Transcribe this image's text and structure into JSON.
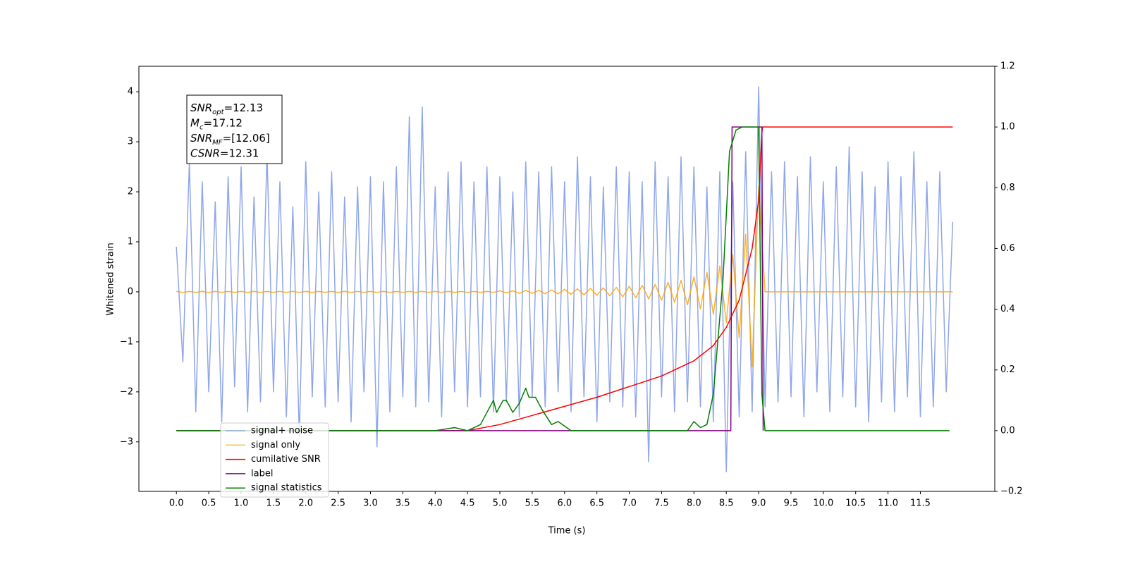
{
  "chart_data": {
    "type": "line",
    "xlabel": "Time (s)",
    "ylabel": "Whitened strain",
    "xlim": [
      -0.58,
      12.65
    ],
    "ylim": [
      -3.99,
      4.51
    ],
    "y2lim": [
      -0.2,
      1.2
    ],
    "xticks": [
      {
        "value": 0,
        "label": "0.0"
      },
      0.5,
      {
        "value": 1,
        "label": "1.0"
      },
      1.5,
      {
        "value": 2,
        "label": "2.0"
      },
      2.5,
      {
        "value": 3,
        "label": "3.0"
      },
      3.5,
      {
        "value": 4,
        "label": "4.0"
      },
      4.5,
      {
        "value": 5,
        "label": "5.0"
      },
      5.5,
      {
        "value": 6,
        "label": "6.0"
      },
      6.5,
      {
        "value": 7,
        "label": "7.0"
      },
      7.5,
      {
        "value": 8,
        "label": "8.0"
      },
      8.5,
      {
        "value": 9,
        "label": "9.0"
      },
      9.5,
      {
        "value": 10,
        "label": "10.0"
      },
      10.5,
      {
        "value": 11,
        "label": "11.0"
      },
      11.5
    ],
    "yticks": [
      {
        "value": -3,
        "label": "−3"
      },
      {
        "value": -2,
        "label": "−2"
      },
      {
        "value": -1,
        "label": "−1"
      },
      0,
      1,
      2,
      3,
      4
    ],
    "y2ticks": [
      {
        "value": -0.2,
        "label": "−0.2"
      },
      {
        "value": 0,
        "label": "0.0"
      },
      0.2,
      0.4,
      0.6,
      0.8,
      {
        "value": 1,
        "label": "1.0"
      },
      1.2
    ],
    "legend": "lower left",
    "annotations": [
      {
        "main": "SNR",
        "sub": "opt",
        "rest": "=12.13"
      },
      {
        "main": "M",
        "sub": "c",
        "rest": "=17.12"
      },
      {
        "main": "SNR",
        "sub": "MF",
        "rest": "=[12.06]"
      },
      {
        "main": "CSNR",
        "sub": "",
        "rest": "=12.31"
      }
    ],
    "x": [
      0.0,
      0.1,
      0.2,
      0.3,
      0.4,
      0.5,
      0.6,
      0.7,
      0.8,
      0.9,
      1.0,
      1.1,
      1.2,
      1.3,
      1.4,
      1.5,
      1.6,
      1.7,
      1.8,
      1.9,
      2.0,
      2.1,
      2.2,
      2.3,
      2.4,
      2.5,
      2.6,
      2.7,
      2.8,
      2.9,
      3.0,
      3.1,
      3.2,
      3.3,
      3.4,
      3.5,
      3.6,
      3.7,
      3.8,
      3.9,
      4.0,
      4.1,
      4.2,
      4.3,
      4.4,
      4.5,
      4.6,
      4.7,
      4.8,
      4.9,
      5.0,
      5.1,
      5.2,
      5.3,
      5.4,
      5.5,
      5.6,
      5.7,
      5.8,
      5.9,
      6.0,
      6.1,
      6.2,
      6.3,
      6.4,
      6.5,
      6.6,
      6.7,
      6.8,
      6.9,
      7.0,
      7.1,
      7.2,
      7.3,
      7.4,
      7.5,
      7.6,
      7.7,
      7.8,
      7.9,
      8.0,
      8.1,
      8.2,
      8.3,
      8.4,
      8.5,
      8.6,
      8.7,
      8.8,
      8.9,
      9.0,
      9.1,
      9.2,
      9.3,
      9.4,
      9.5,
      9.6,
      9.7,
      9.8,
      9.9,
      10.0,
      10.1,
      10.2,
      10.3,
      10.4,
      10.5,
      10.6,
      10.7,
      10.8,
      10.9,
      11.0,
      11.1,
      11.2,
      11.3,
      11.4,
      11.5,
      11.6,
      11.7,
      11.8,
      11.9,
      12.0
    ],
    "series": [
      {
        "name": "signal+ noise",
        "color": "#7b96e6",
        "values": [
          0.9,
          -1.4,
          2.6,
          -2.4,
          2.2,
          -2.0,
          1.8,
          -2.6,
          2.3,
          -1.9,
          2.5,
          -2.4,
          1.9,
          -2.2,
          2.8,
          -2.0,
          2.2,
          -2.5,
          1.7,
          -2.9,
          2.6,
          -2.1,
          2.0,
          -2.3,
          2.4,
          -2.2,
          1.9,
          -2.6,
          2.1,
          -2.0,
          2.3,
          -3.1,
          2.2,
          -2.4,
          2.5,
          -2.1,
          3.5,
          -2.3,
          3.7,
          -2.2,
          2.1,
          -2.5,
          2.4,
          -2.0,
          2.6,
          -2.3,
          2.2,
          -2.1,
          2.5,
          -2.4,
          2.3,
          -2.2,
          2.0,
          -2.5,
          2.6,
          -2.1,
          2.4,
          -2.3,
          2.5,
          -2.0,
          2.2,
          -2.4,
          2.7,
          -2.1,
          2.3,
          -2.6,
          2.1,
          -2.2,
          2.5,
          -2.3,
          2.4,
          -2.5,
          2.2,
          -3.4,
          2.6,
          -2.1,
          2.3,
          -2.4,
          2.7,
          -2.2,
          2.5,
          -2.3,
          2.1,
          -2.6,
          2.4,
          -3.6,
          2.2,
          -2.5,
          2.8,
          -2.4,
          4.1,
          -2.3,
          2.4,
          -2.2,
          2.6,
          -2.1,
          2.3,
          -2.5,
          2.7,
          -2.0,
          2.2,
          -2.4,
          2.5,
          -2.1,
          2.9,
          -2.3,
          2.4,
          -2.6,
          2.1,
          -2.2,
          2.6,
          -2.4,
          2.3,
          -2.1,
          2.8,
          -2.5,
          2.2,
          -2.3,
          2.4,
          -2.0,
          1.4
        ]
      },
      {
        "name": "signal only",
        "color": "#ffa500",
        "values": [
          0.01,
          -0.01,
          0.01,
          -0.01,
          0.01,
          -0.01,
          0.01,
          -0.01,
          0.01,
          -0.01,
          0.01,
          -0.01,
          0.01,
          -0.01,
          0.01,
          -0.01,
          0.01,
          -0.01,
          0.01,
          -0.01,
          0.01,
          -0.01,
          0.01,
          -0.01,
          0.01,
          -0.01,
          0.01,
          -0.01,
          0.01,
          -0.01,
          0.01,
          -0.01,
          0.01,
          -0.01,
          0.01,
          -0.01,
          0.01,
          -0.01,
          0.01,
          -0.01,
          0.01,
          -0.01,
          0.01,
          -0.01,
          0.01,
          -0.01,
          0.01,
          -0.01,
          0.01,
          -0.01,
          0.02,
          -0.02,
          0.02,
          -0.03,
          0.03,
          -0.03,
          0.03,
          -0.04,
          0.04,
          -0.04,
          0.05,
          -0.05,
          0.06,
          -0.06,
          0.07,
          -0.07,
          0.08,
          -0.08,
          0.09,
          -0.1,
          0.11,
          -0.12,
          0.13,
          -0.14,
          0.15,
          -0.17,
          0.19,
          -0.21,
          0.23,
          -0.26,
          0.3,
          -0.34,
          0.39,
          -0.45,
          0.52,
          -0.62,
          0.75,
          -0.92,
          1.15,
          -1.5,
          2.1,
          0,
          0,
          0,
          0,
          0,
          0,
          0,
          0,
          0,
          0,
          0,
          0,
          0,
          0,
          0,
          0,
          0,
          0,
          0,
          0,
          0,
          0,
          0,
          0,
          0,
          0,
          0,
          0,
          0,
          0
        ]
      },
      {
        "name": "cumilative SNR",
        "color": "#ff0000",
        "axis": "y2",
        "x": [
          0,
          4.5,
          5,
          5.5,
          6,
          6.5,
          7,
          7.5,
          8,
          8.3,
          8.5,
          8.7,
          8.9,
          9.0,
          9.05,
          9.06,
          12.0
        ],
        "values": [
          0,
          0,
          0.02,
          0.05,
          0.08,
          0.11,
          0.145,
          0.18,
          0.23,
          0.28,
          0.34,
          0.43,
          0.6,
          0.76,
          0.98,
          1.0,
          1.0
        ]
      },
      {
        "name": "label",
        "color": "#800080",
        "axis": "y2",
        "x": [
          0,
          8.57,
          8.59,
          9.05,
          9.07
        ],
        "values": [
          0,
          0,
          1,
          1,
          0
        ]
      },
      {
        "name": "signal statistics",
        "color": "#008000",
        "axis": "y2",
        "x": [
          0,
          4.0,
          4.3,
          4.5,
          4.7,
          4.9,
          4.95,
          5.05,
          5.1,
          5.2,
          5.3,
          5.4,
          5.45,
          5.55,
          5.65,
          5.8,
          5.9,
          6.1,
          7.9,
          8.0,
          8.1,
          8.2,
          8.3,
          8.45,
          8.55,
          8.65,
          8.75,
          8.95,
          9.0,
          9.05,
          9.1,
          11.95
        ],
        "values": [
          0,
          0,
          0.01,
          0,
          0.02,
          0.1,
          0.06,
          0.1,
          0.1,
          0.06,
          0.09,
          0.14,
          0.11,
          0.11,
          0.07,
          0.02,
          0.03,
          0,
          0,
          0.03,
          0.01,
          0.02,
          0.12,
          0.5,
          0.92,
          0.99,
          1.0,
          1.0,
          1.0,
          0.12,
          0,
          0
        ]
      }
    ]
  }
}
